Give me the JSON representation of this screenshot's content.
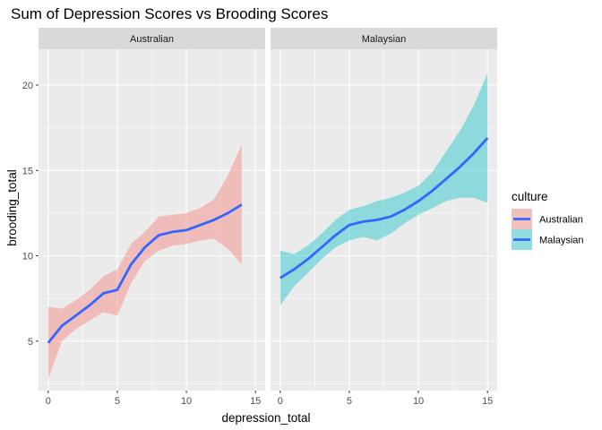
{
  "chart_data": {
    "type": "line",
    "title": "Sum of Depression Scores vs Brooding Scores",
    "xlabel": "depression_total",
    "ylabel": "brooding_total",
    "xlim": [
      -0.7,
      15.7
    ],
    "ylim": [
      2.1,
      22.1
    ],
    "xticks": [
      0,
      5,
      10,
      15
    ],
    "yticks": [
      5,
      10,
      15,
      20
    ],
    "grid": true,
    "legend": {
      "title": "culture",
      "position": "right"
    },
    "panels": [
      {
        "name": "Australian",
        "fill_color": "#F8766D",
        "line_color": "#3366FF",
        "x": [
          0,
          1,
          2,
          3,
          4,
          5,
          6,
          7,
          8,
          9,
          10,
          11,
          12,
          13,
          14
        ],
        "y": [
          4.9,
          5.9,
          6.5,
          7.1,
          7.8,
          8.0,
          9.5,
          10.5,
          11.2,
          11.4,
          11.5,
          11.8,
          12.1,
          12.5,
          13.0
        ],
        "lower": [
          2.8,
          5.0,
          5.7,
          6.2,
          6.7,
          6.5,
          8.4,
          9.7,
          10.3,
          10.6,
          10.7,
          10.9,
          11.0,
          10.4,
          9.5
        ],
        "upper": [
          7.0,
          6.9,
          7.4,
          8.0,
          8.8,
          9.2,
          10.7,
          11.4,
          12.3,
          12.4,
          12.5,
          12.8,
          13.3,
          14.7,
          16.5
        ]
      },
      {
        "name": "Malaysian",
        "fill_color": "#00BFC4",
        "line_color": "#3366FF",
        "x": [
          0,
          1,
          2,
          3,
          4,
          5,
          6,
          7,
          8,
          9,
          10,
          11,
          12,
          13,
          14,
          15
        ],
        "y": [
          8.7,
          9.2,
          9.8,
          10.5,
          11.2,
          11.8,
          12.0,
          12.1,
          12.3,
          12.7,
          13.2,
          13.8,
          14.5,
          15.2,
          16.0,
          16.9
        ],
        "lower": [
          7.1,
          8.2,
          9.0,
          9.8,
          10.5,
          10.9,
          11.1,
          10.9,
          11.3,
          11.9,
          12.4,
          12.8,
          13.2,
          13.4,
          13.4,
          13.1
        ],
        "upper": [
          10.3,
          10.1,
          10.6,
          11.3,
          12.1,
          12.7,
          12.9,
          13.2,
          13.4,
          13.7,
          14.1,
          14.9,
          16.1,
          17.3,
          18.8,
          20.7
        ]
      }
    ]
  }
}
